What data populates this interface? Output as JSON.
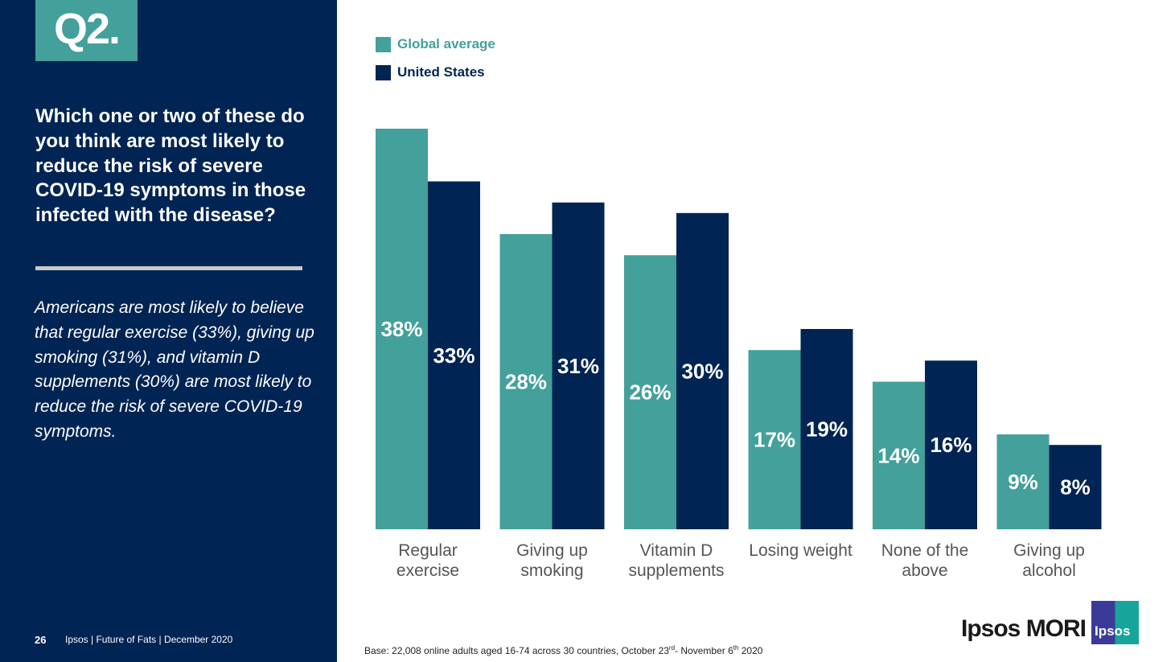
{
  "panel": {
    "q": "Q2.",
    "question": "Which one or two of these do you think are most likely to reduce the risk of severe COVID-19 symptoms in those infected with the disease?",
    "summary": "Americans are most likely to believe that regular exercise (33%), giving up smoking (31%), and vitamin D supplements (30%) are most likely to reduce the risk of severe COVID-19 symptoms.",
    "page": "26",
    "footer": "Ipsos | Future of Fats | December 2020"
  },
  "base": "Base: 22,008 online adults aged 16-74 across 30 countries, October 23rd- November 6th 2020",
  "brand": {
    "mori": "Ipsos MORI",
    "logo": "Ipsos"
  },
  "chart_data": {
    "type": "bar",
    "categories": [
      "Regular exercise",
      "Giving up smoking",
      "Vitamin D supplements",
      "Losing weight",
      "None of the above",
      "Giving up alcohol"
    ],
    "series": [
      {
        "name": "Global average",
        "color": "#43a09b",
        "values": [
          38,
          28,
          26,
          17,
          14,
          9
        ]
      },
      {
        "name": "United States",
        "color": "#002453",
        "values": [
          33,
          31,
          30,
          19,
          16,
          8
        ]
      }
    ],
    "ylim": [
      0,
      38
    ],
    "grid": false,
    "legend": "top-left",
    "data_labels": "percent"
  }
}
